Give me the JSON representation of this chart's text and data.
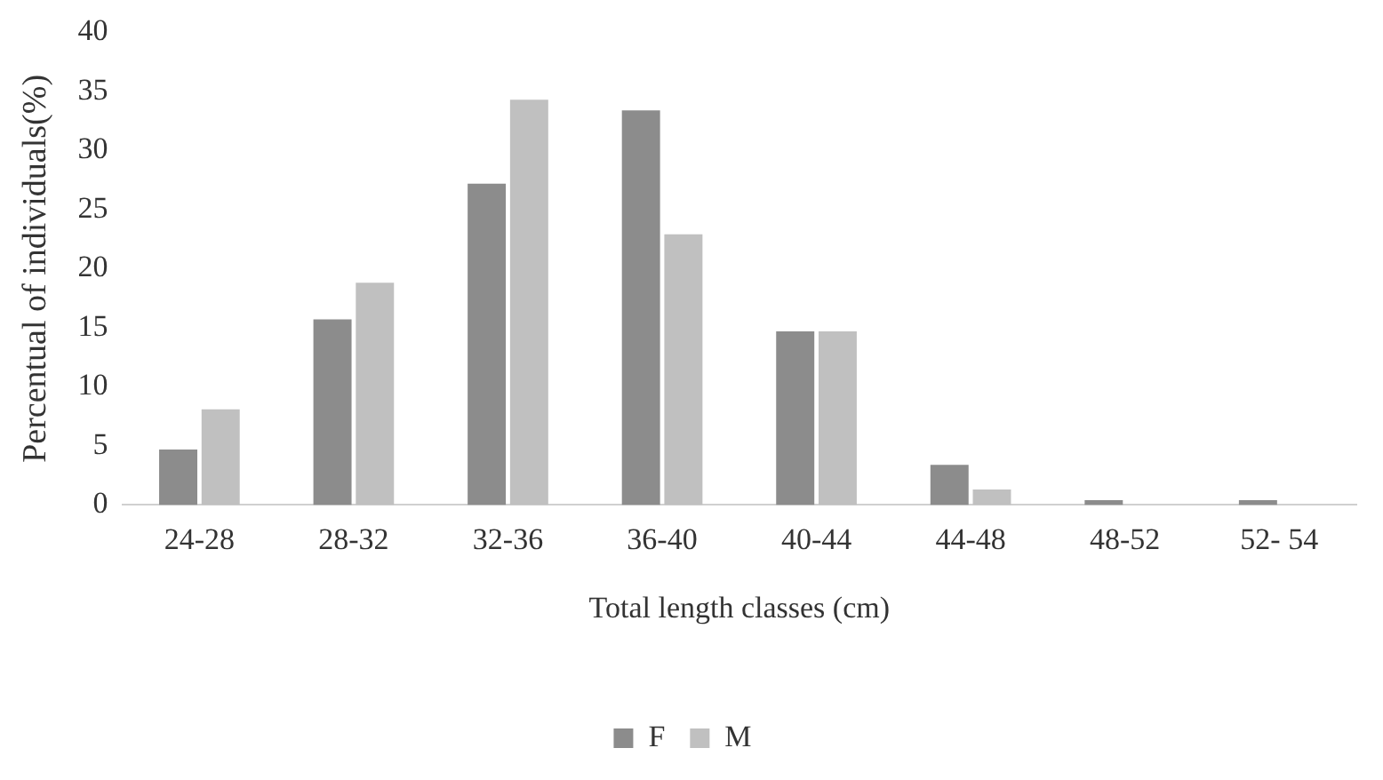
{
  "chart_data": {
    "type": "bar",
    "xlabel": "Total length classes (cm)",
    "ylabel": "Percentual of individuals(%)",
    "categories": [
      "24-28",
      "28-32",
      "32-36",
      "36-40",
      "40-44",
      "44-48",
      "48-52",
      "52- 54"
    ],
    "series": [
      {
        "name": "F",
        "color": "#8c8c8c",
        "values": [
          4.7,
          15.7,
          27.2,
          33.4,
          14.7,
          3.4,
          0.4,
          0.4
        ]
      },
      {
        "name": "M",
        "color": "#c0c0c0",
        "values": [
          8.1,
          18.8,
          34.3,
          22.9,
          14.7,
          1.3,
          0,
          0
        ]
      }
    ],
    "ylim": [
      0,
      40
    ],
    "yticks": [
      0,
      5,
      10,
      15,
      20,
      25,
      30,
      35,
      40
    ],
    "grid": false,
    "legend": "bottom"
  }
}
